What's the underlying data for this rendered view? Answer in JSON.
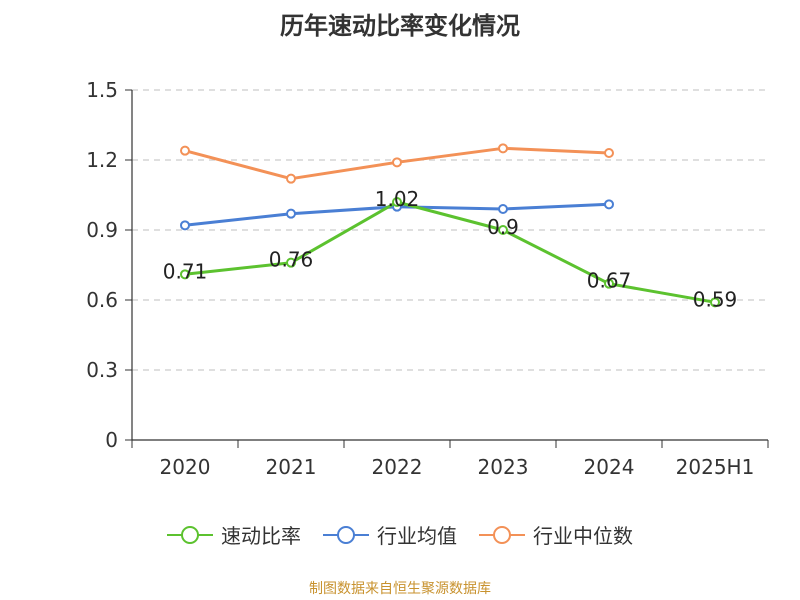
{
  "chart_data": {
    "type": "line",
    "title": "历年速动比率变化情况",
    "categories": [
      "2020",
      "2021",
      "2022",
      "2023",
      "2024",
      "2025H1"
    ],
    "series": [
      {
        "name": "速动比率",
        "color": "#5cc22f",
        "values": [
          0.71,
          0.76,
          1.02,
          0.9,
          0.67,
          0.59
        ],
        "labels": [
          "0.71",
          "0.76",
          "1.02",
          "0.9",
          "0.67",
          "0.59"
        ]
      },
      {
        "name": "行业均值",
        "color": "#4a7fd4",
        "values": [
          0.92,
          0.97,
          1.0,
          0.99,
          1.01,
          null
        ]
      },
      {
        "name": "行业中位数",
        "color": "#f39157",
        "values": [
          1.24,
          1.12,
          1.19,
          1.25,
          1.23,
          null
        ]
      }
    ],
    "ylim": [
      0,
      1.5
    ],
    "yticks": [
      "0",
      "0.3",
      "0.6",
      "0.9",
      "1.2",
      "1.5"
    ],
    "yticks_values": [
      0,
      0.3,
      0.6,
      0.9,
      1.2,
      1.5
    ],
    "grid": true,
    "legend_position": "bottom"
  },
  "source": "制图数据来自恒生聚源数据库"
}
